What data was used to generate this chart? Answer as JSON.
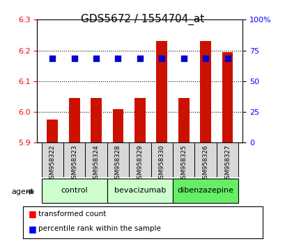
{
  "title": "GDS5672 / 1554704_at",
  "samples": [
    "GSM958322",
    "GSM958323",
    "GSM958324",
    "GSM958328",
    "GSM958329",
    "GSM958330",
    "GSM958325",
    "GSM958326",
    "GSM958327"
  ],
  "bar_values": [
    5.975,
    6.045,
    6.045,
    6.01,
    6.045,
    6.23,
    6.045,
    6.23,
    6.195
  ],
  "dot_values": [
    6.175,
    6.175,
    6.175,
    6.175,
    6.175,
    6.175,
    6.175,
    6.175,
    6.175
  ],
  "dot_percentiles": [
    70,
    70,
    70,
    70,
    70,
    70,
    70,
    70,
    70
  ],
  "bar_color": "#cc1100",
  "dot_color": "#0000cc",
  "ymin": 5.9,
  "ymax": 6.3,
  "yticks": [
    5.9,
    6.0,
    6.1,
    6.2,
    6.3
  ],
  "y2min": 0,
  "y2max": 100,
  "y2ticks": [
    0,
    25,
    50,
    75,
    100
  ],
  "y2ticklabels": [
    "0",
    "25",
    "50",
    "75",
    "100%"
  ],
  "groups": [
    {
      "label": "control",
      "indices": [
        0,
        1,
        2
      ],
      "color": "#ccffcc"
    },
    {
      "label": "bevacizumab",
      "indices": [
        3,
        4,
        5
      ],
      "color": "#ccffcc"
    },
    {
      "label": "dibenzazepine",
      "indices": [
        6,
        7,
        8
      ],
      "color": "#66ff66"
    }
  ],
  "agent_label": "agent",
  "legend_items": [
    {
      "color": "#cc1100",
      "label": "transformed count"
    },
    {
      "color": "#0000cc",
      "label": "percentile rank within the sample"
    }
  ],
  "background_color": "#ffffff",
  "grid_color": "#000000"
}
